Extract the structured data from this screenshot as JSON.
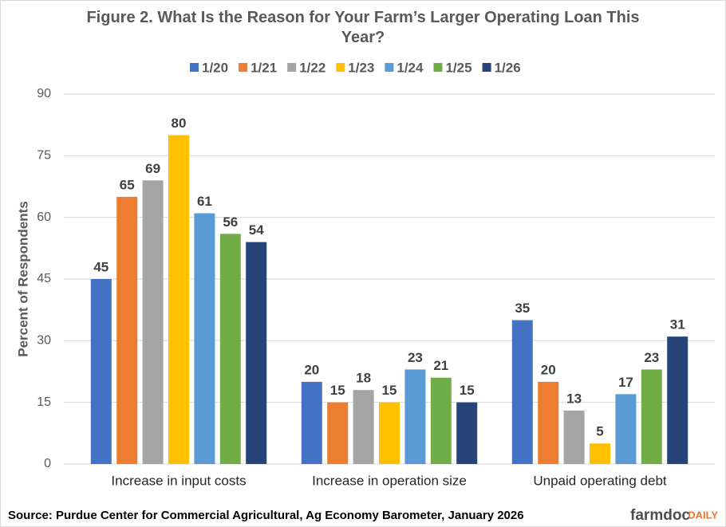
{
  "chart_data": {
    "type": "bar",
    "title": "Figure  2. What Is the Reason for Your Farm’s Larger Operating Loan This Year?",
    "y_label": "Percent of Respondents",
    "categories": [
      "Increase in input costs",
      "Increase in operation size",
      "Unpaid operating debt"
    ],
    "series": [
      {
        "name": "1/20",
        "color": "#4472c4",
        "values": [
          45,
          20,
          35
        ]
      },
      {
        "name": "1/21",
        "color": "#ed7d31",
        "values": [
          65,
          15,
          20
        ]
      },
      {
        "name": "1/22",
        "color": "#a5a5a5",
        "values": [
          69,
          18,
          13
        ]
      },
      {
        "name": "1/23",
        "color": "#ffc000",
        "values": [
          80,
          15,
          5
        ]
      },
      {
        "name": "1/24",
        "color": "#5b9bd5",
        "values": [
          61,
          23,
          17
        ]
      },
      {
        "name": "1/25",
        "color": "#70ad47",
        "values": [
          56,
          21,
          23
        ]
      },
      {
        "name": "1/26",
        "color": "#264478",
        "values": [
          54,
          15,
          31
        ]
      }
    ],
    "ylim": [
      0,
      90
    ],
    "yticks": [
      0,
      15,
      30,
      45,
      60,
      75,
      90
    ],
    "grid": true,
    "legend": "top",
    "source": "Source: Purdue Center for Commercial Agricultural, Ag Economy Barometer, January 2026",
    "logo": {
      "main": "farmdoc",
      "accent": "DAILY"
    }
  }
}
